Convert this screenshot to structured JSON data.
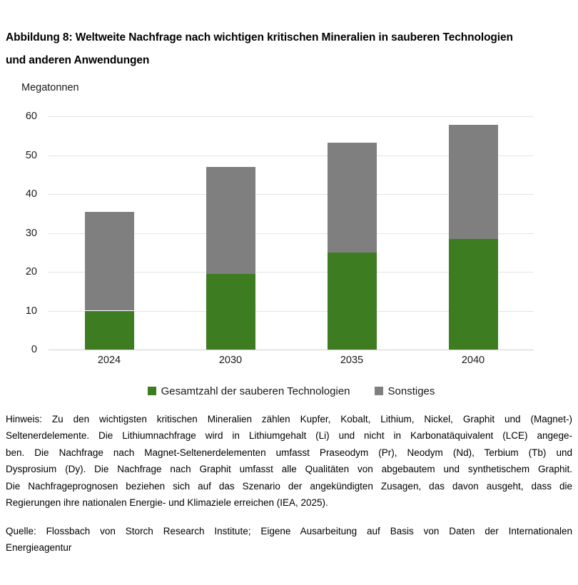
{
  "figure": {
    "title_lines": [
      "Abbildung 8: Weltweite Nachfrage nach wichtigen kritischen Mineralien in sauberen Technologien",
      "und anderen Anwendungen"
    ],
    "unit_label": "Megatonnen"
  },
  "chart_data": {
    "type": "bar",
    "stacked": true,
    "title": "Abbildung 8: Weltweite Nachfrage nach wichtigen kritischen Mineralien in sauberen Technologien und anderen Anwendungen",
    "ylabel": "Megatonnen",
    "xlabel": "",
    "categories": [
      "2024",
      "2030",
      "2035",
      "2040"
    ],
    "series": [
      {
        "key": "clean-tech",
        "name": "Gesamtzahl der sauberen Technologien",
        "color": "#3d7c21",
        "values": [
          10.0,
          19.5,
          25.0,
          28.5
        ]
      },
      {
        "key": "sonstiges",
        "name": "Sonstiges",
        "color": "#7f7f7f",
        "values": [
          25.4,
          27.5,
          28.2,
          29.3
        ]
      }
    ],
    "totals": [
      35.4,
      47.0,
      53.2,
      57.8
    ],
    "ylim": [
      0,
      60
    ],
    "yticks": [
      0,
      10,
      20,
      30,
      40,
      50,
      60
    ],
    "grid": "horizontal",
    "legend_position": "bottom-center"
  },
  "notes": {
    "hinweis_lines": [
      "Hinweis: Zu den wichtigsten kritischen Mineralien zählen Kupfer, Kobalt, Lithium, Nickel, Graphit und (Magnet-)",
      "Seltenerdelemente. Die Lithiumnachfrage wird in Lithiumgehalt (Li) und nicht in Karbonatäquivalent (LCE) angege-",
      "ben. Die Nachfrage nach Magnet-Seltenerdelementen umfasst Praseodym (Pr), Neodym (Nd), Terbium (Tb) und",
      "Dysprosium (Dy). Die Nachfrage nach Graphit umfasst alle Qualitäten von abgebautem und synthetischem Graphit.",
      "Die Nachfrageprognosen beziehen sich auf das Szenario der angekündigten Zusagen, das davon ausgeht, dass die",
      "Regierungen ihre nationalen Energie- und Klimaziele erreichen (IEA, 2025)."
    ],
    "quelle_lines": [
      "Quelle: Flossbach von Storch Research Institute; Eigene Ausarbeitung auf Basis von Daten der Internationalen",
      "Energieagentur"
    ]
  }
}
